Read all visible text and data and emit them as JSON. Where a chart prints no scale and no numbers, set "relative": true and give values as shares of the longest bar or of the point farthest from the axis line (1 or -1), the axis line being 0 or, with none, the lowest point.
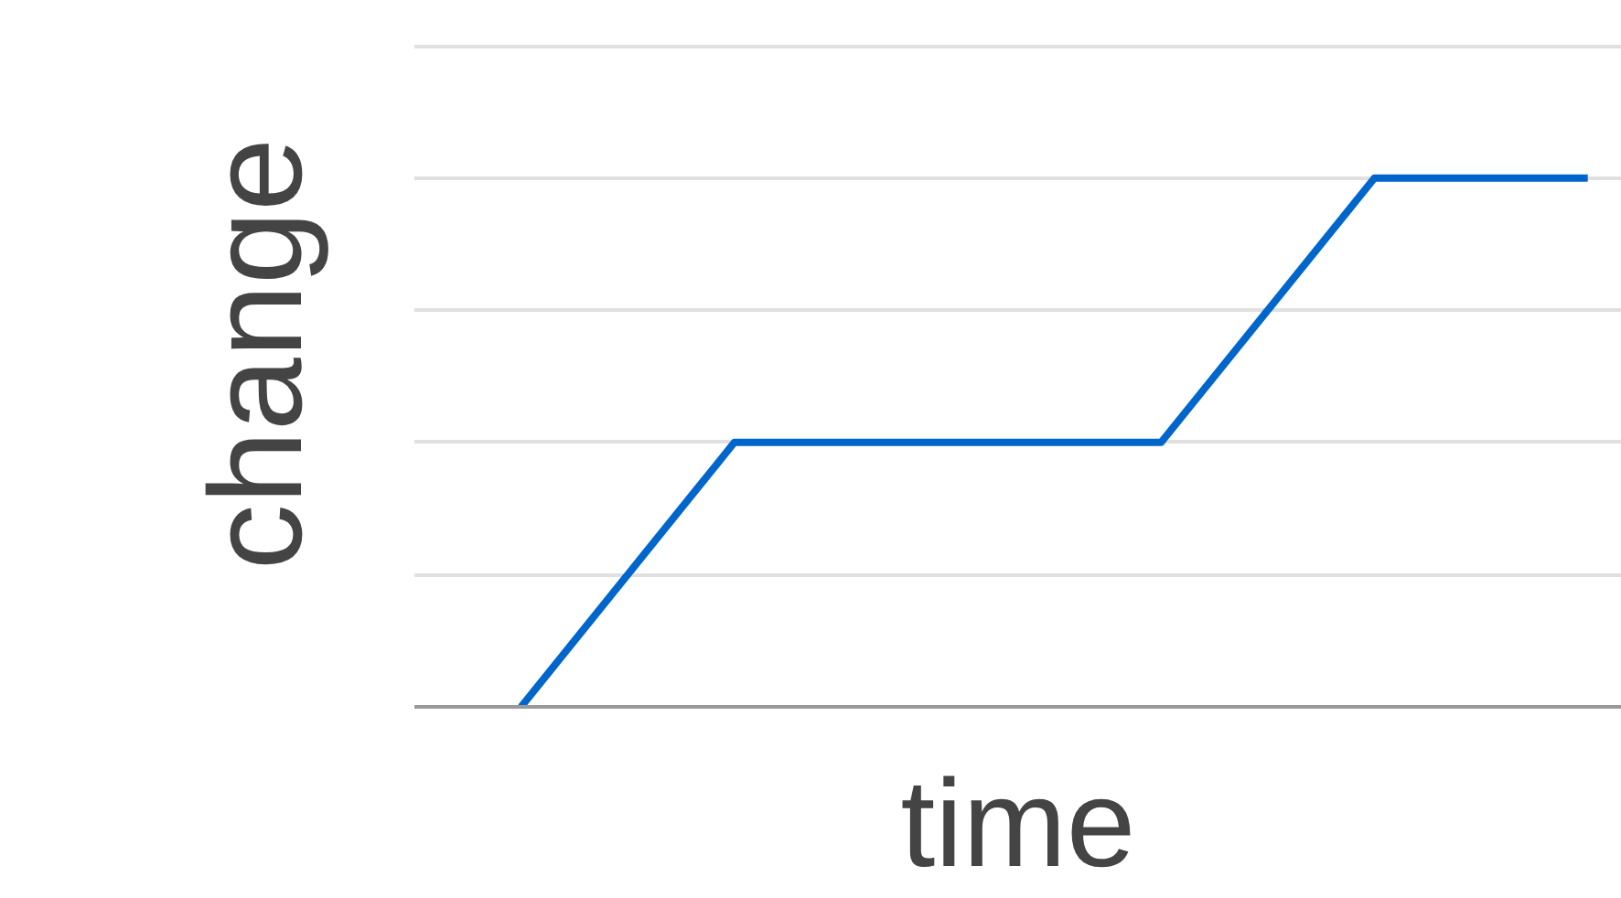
{
  "chart_data": {
    "type": "line",
    "relative": true,
    "xlabel": "time",
    "ylabel": "change",
    "categories": [
      null,
      null,
      null,
      null,
      null,
      null
    ],
    "series": [
      {
        "color": "#0066cc",
        "values": [
          0,
          0.5,
          0.5,
          0.5,
          1,
          1
        ]
      }
    ],
    "grid": "y",
    "marker": "none",
    "line_style": "solid"
  }
}
